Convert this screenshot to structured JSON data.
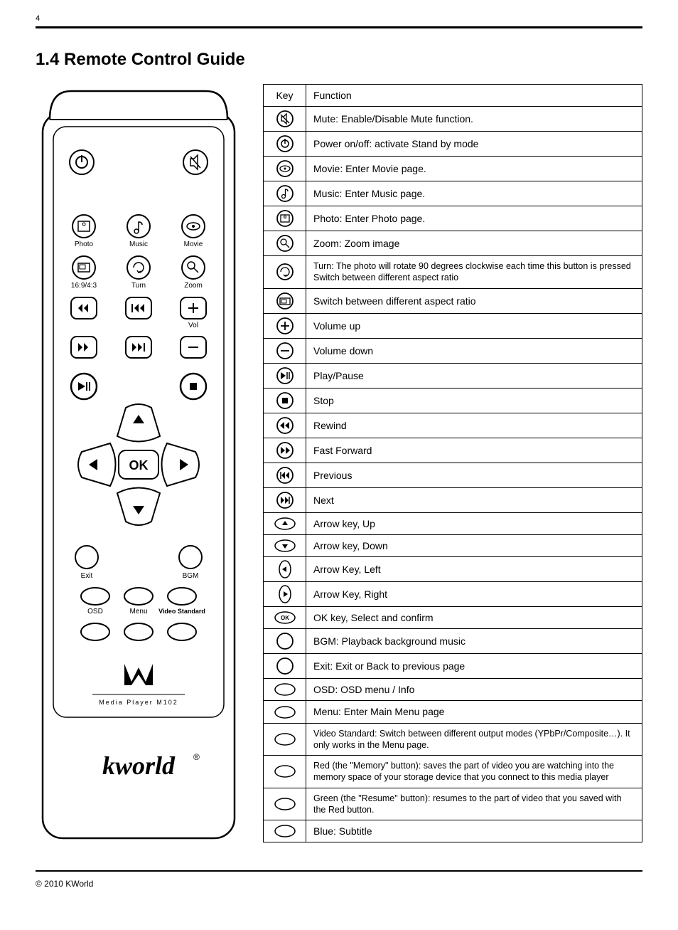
{
  "page_number": "4",
  "heading": "1.4 Remote Control Guide",
  "remote": {
    "row1_labels": [
      "Photo",
      "Music",
      "Movie"
    ],
    "row2_labels": [
      "16:9/4:3",
      "Turn",
      "Zoom"
    ],
    "vol_label": "Vol",
    "ok_label": "OK",
    "exit_label": "Exit",
    "bgm_label": "BGM",
    "osd_label": "OSD",
    "menu_label": "Menu",
    "video_std_label": "Video Standard",
    "media_player_label": "Media Player M102",
    "brand": "kworld"
  },
  "table": {
    "header_key": "Key",
    "header_func": "Function",
    "rows": [
      {
        "icon": "mute",
        "text": "Mute: Enable/Disable Mute function."
      },
      {
        "icon": "power",
        "text": "Power on/off: activate Stand by mode"
      },
      {
        "icon": "movie",
        "text": "Movie: Enter Movie page."
      },
      {
        "icon": "music",
        "text": "Music: Enter Music page."
      },
      {
        "icon": "photo",
        "text": "Photo: Enter Photo page."
      },
      {
        "icon": "zoom",
        "text": "Zoom: Zoom image"
      },
      {
        "icon": "turn",
        "text": "Turn: The photo will rotate 90 degrees clockwise each time this button is pressed Switch between different aspect ratio",
        "small": true
      },
      {
        "icon": "aspect",
        "text": "Switch between different aspect ratio"
      },
      {
        "icon": "volup",
        "text": "Volume up"
      },
      {
        "icon": "voldown",
        "text": "Volume down"
      },
      {
        "icon": "playpause",
        "text": "Play/Pause"
      },
      {
        "icon": "stop",
        "text": "Stop"
      },
      {
        "icon": "rewind",
        "text": "Rewind"
      },
      {
        "icon": "ff",
        "text": "Fast Forward"
      },
      {
        "icon": "prev",
        "text": "Previous"
      },
      {
        "icon": "next",
        "text": "Next"
      },
      {
        "icon": "up",
        "text": "Arrow key, Up"
      },
      {
        "icon": "down",
        "text": "Arrow key, Down"
      },
      {
        "icon": "left",
        "text": "Arrow Key, Left"
      },
      {
        "icon": "right",
        "text": "Arrow Key, Right"
      },
      {
        "icon": "ok",
        "text": "OK key, Select and confirm"
      },
      {
        "icon": "circle",
        "text": "BGM: Playback background music"
      },
      {
        "icon": "circle",
        "text": "Exit: Exit or Back to previous page"
      },
      {
        "icon": "oval",
        "text": "OSD: OSD menu / Info"
      },
      {
        "icon": "oval",
        "text": "Menu: Enter Main Menu page"
      },
      {
        "icon": "oval",
        "text": "Video Standard: Switch between different output modes (YPbPr/Composite…). It only works in the Menu page.",
        "small": true
      },
      {
        "icon": "oval",
        "text": "Red (the \"Memory\" button): saves the part of video you are watching into the memory space of your storage device that you connect to this media player",
        "small": true
      },
      {
        "icon": "oval",
        "text": "Green (the \"Resume\" button): resumes to the part of video that you saved with the Red button.",
        "small": true
      },
      {
        "icon": "oval",
        "text": "Blue: Subtitle"
      }
    ]
  },
  "copyright": "© 2010 KWorld"
}
